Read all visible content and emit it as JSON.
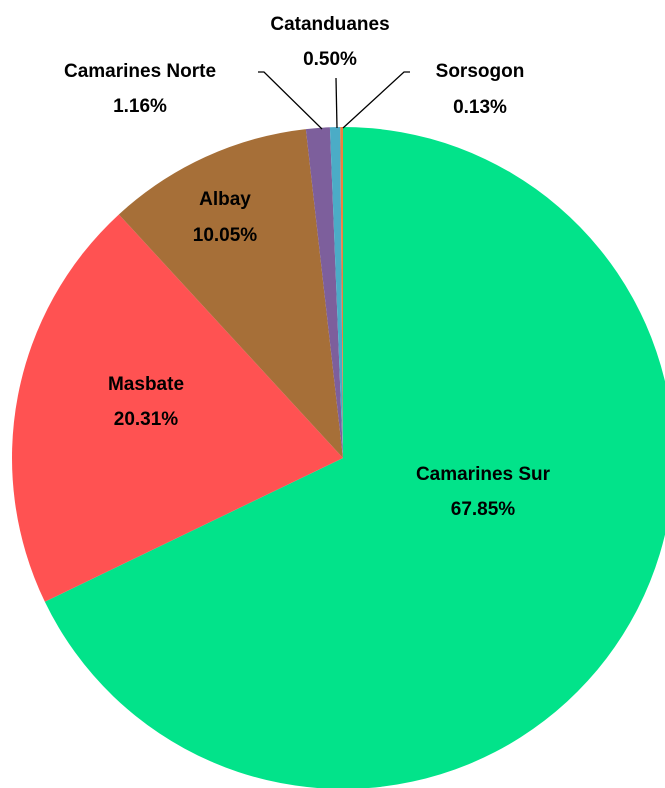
{
  "chart_data": {
    "type": "pie",
    "categories": [
      "Camarines Sur",
      "Masbate",
      "Albay",
      "Camarines Norte",
      "Catanduanes",
      "Sorsogon"
    ],
    "values": [
      67.85,
      20.31,
      10.05,
      1.16,
      0.5,
      0.13
    ],
    "value_labels": [
      "67.85%",
      "20.31%",
      "10.05%",
      "1.16%",
      "0.50%",
      "0.13%"
    ],
    "colors": [
      "#02e38a",
      "#ff5252",
      "#a66f38",
      "#7d5f9c",
      "#4bacc6",
      "#f07f3c"
    ]
  }
}
